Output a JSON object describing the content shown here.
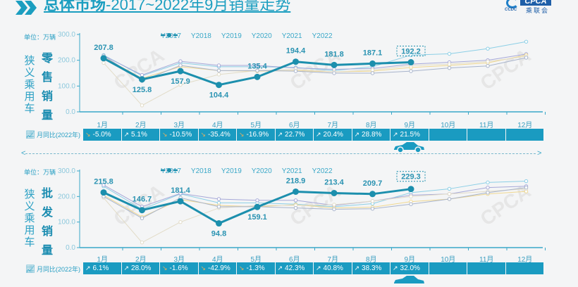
{
  "header": {
    "title_bold": "总体市场",
    "title_rest": "-2017~2022年9月销量走势",
    "logo_text": "CPCA",
    "logo_cn": "乘联会",
    "logo_sub": "CCDC"
  },
  "colors": {
    "accent": "#1a9bc1",
    "Y2017": "#8ccfe6",
    "Y2018": "#a6a8d8",
    "Y2019": "#f0d890",
    "Y2020": "#e2dcc8",
    "Y2021": "#a8b4cc",
    "Y2022": "#1c8fad"
  },
  "months": [
    "1月",
    "2月",
    "3月",
    "4月",
    "5月",
    "6月",
    "7月",
    "8月",
    "9月",
    "10月",
    "11月",
    "12月"
  ],
  "retail": {
    "unit": "单位：万辆",
    "side_label": "狭义乘用车",
    "type_label": "零售销量",
    "yoy_label": "月同比(2022年)",
    "yoy": [
      {
        "value": "-5.0%",
        "dir": "down"
      },
      {
        "value": "5.1%",
        "dir": "up"
      },
      {
        "value": "-10.5%",
        "dir": "down"
      },
      {
        "value": "-35.4%",
        "dir": "down"
      },
      {
        "value": "-16.9%",
        "dir": "down"
      },
      {
        "value": "22.7%",
        "dir": "up"
      },
      {
        "value": "20.4%",
        "dir": "up"
      },
      {
        "value": "28.8%",
        "dir": "up"
      },
      {
        "value": "21.5%",
        "dir": "up"
      },
      {
        "value": "",
        "dir": ""
      },
      {
        "value": "",
        "dir": ""
      },
      {
        "value": ""
      }
    ]
  },
  "wholesale": {
    "unit": "单位：万辆",
    "side_label": "狭义乘用车",
    "type_label": "批发销量",
    "yoy_label": "月同比(2022年)",
    "yoy": [
      {
        "value": "6.1%",
        "dir": "up"
      },
      {
        "value": "28.0%",
        "dir": "up"
      },
      {
        "value": "-1.6%",
        "dir": "down"
      },
      {
        "value": "-42.9%",
        "dir": "down"
      },
      {
        "value": "-1.3%",
        "dir": "down"
      },
      {
        "value": "42.3%",
        "dir": "up"
      },
      {
        "value": "40.8%",
        "dir": "up"
      },
      {
        "value": "38.3%",
        "dir": "up"
      },
      {
        "value": "32.0%",
        "dir": "up"
      },
      {
        "value": "",
        "dir": ""
      },
      {
        "value": "",
        "dir": ""
      },
      {
        "value": ""
      }
    ]
  },
  "chart_data": [
    {
      "type": "line",
      "title": "狭义乘用车零售销量",
      "ylabel": "万辆",
      "ylim": [
        0,
        300
      ],
      "yticks": [
        "0.0",
        "100.0",
        "200.0",
        "300.0"
      ],
      "categories": [
        "1月",
        "2月",
        "3月",
        "4月",
        "5月",
        "6月",
        "7月",
        "8月",
        "9月",
        "10月",
        "11月",
        "12月"
      ],
      "legend_position": "top",
      "series": [
        {
          "name": "Y2017",
          "values": [
            220,
            140,
            190,
            175,
            175,
            172,
            160,
            175,
            220,
            225,
            245,
            272
          ]
        },
        {
          "name": "Y2018",
          "values": [
            218,
            143,
            196,
            180,
            180,
            170,
            165,
            168,
            185,
            192,
            200,
            224
          ]
        },
        {
          "name": "Y2019",
          "values": [
            212,
            130,
            175,
            160,
            158,
            160,
            155,
            158,
            172,
            180,
            190,
            220
          ]
        },
        {
          "name": "Y2020",
          "values": [
            190,
            25,
            105,
            145,
            160,
            165,
            155,
            162,
            180,
            185,
            195,
            215
          ]
        },
        {
          "name": "Y2021",
          "values": [
            218,
            120,
            180,
            160,
            160,
            158,
            150,
            150,
            158,
            170,
            178,
            210
          ]
        },
        {
          "name": "Y2022",
          "values": [
            207.8,
            125.8,
            157.9,
            104.4,
            135.4,
            194.4,
            181.8,
            187.1,
            192.2,
            null,
            null,
            null
          ]
        }
      ],
      "data_labels_2022": [
        "207.8",
        "125.8",
        "157.9",
        "104.4",
        "135.4",
        "194.4",
        "181.8",
        "187.1",
        "192.2"
      ]
    },
    {
      "type": "line",
      "title": "狭义乘用车批发销量",
      "ylabel": "万辆",
      "ylim": [
        0,
        300
      ],
      "yticks": [
        "0.0",
        "100.0",
        "200.0",
        "300.0"
      ],
      "categories": [
        "1月",
        "2月",
        "3月",
        "4月",
        "5月",
        "6月",
        "7月",
        "8月",
        "9月",
        "10月",
        "11月",
        "12月"
      ],
      "legend_position": "top",
      "series": [
        {
          "name": "Y2017",
          "values": [
            240,
            150,
            210,
            175,
            175,
            170,
            160,
            172,
            215,
            230,
            255,
            260
          ]
        },
        {
          "name": "Y2018",
          "values": [
            245,
            160,
            212,
            190,
            185,
            185,
            165,
            182,
            205,
            210,
            235,
            240
          ]
        },
        {
          "name": "Y2019",
          "values": [
            205,
            120,
            188,
            165,
            160,
            168,
            155,
            158,
            180,
            190,
            210,
            220
          ]
        },
        {
          "name": "Y2020",
          "values": [
            195,
            20,
            100,
            155,
            165,
            165,
            168,
            182,
            200,
            210,
            220,
            230
          ]
        },
        {
          "name": "Y2021",
          "values": [
            200,
            115,
            195,
            160,
            160,
            155,
            150,
            152,
            170,
            190,
            215,
            235
          ]
        },
        {
          "name": "Y2022",
          "values": [
            215.8,
            146.7,
            181.4,
            94.8,
            159.1,
            218.9,
            213.4,
            209.7,
            229.3,
            null,
            null,
            null
          ]
        }
      ],
      "data_labels_2022": [
        "215.8",
        "146.7",
        "181.4",
        "94.8",
        "159.1",
        "218.9",
        "213.4",
        "209.7",
        "229.3"
      ]
    }
  ]
}
